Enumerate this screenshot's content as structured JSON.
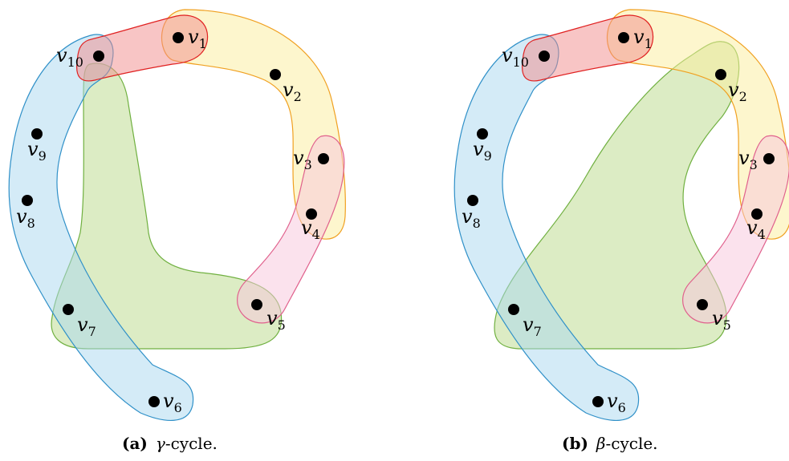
{
  "panels": [
    {
      "id": "a",
      "caption": {
        "tag": "(a)",
        "symbol": "γ",
        "text": "-cycle."
      },
      "vertices": [
        {
          "name": "v",
          "sub": "1"
        },
        {
          "name": "v",
          "sub": "2"
        },
        {
          "name": "v",
          "sub": "3"
        },
        {
          "name": "v",
          "sub": "4"
        },
        {
          "name": "v",
          "sub": "5"
        },
        {
          "name": "v",
          "sub": "6"
        },
        {
          "name": "v",
          "sub": "7"
        },
        {
          "name": "v",
          "sub": "8"
        },
        {
          "name": "v",
          "sub": "9"
        },
        {
          "name": "v",
          "sub": "10"
        }
      ]
    },
    {
      "id": "b",
      "caption": {
        "tag": "(b)",
        "symbol": "β",
        "text": "-cycle."
      },
      "vertices": [
        {
          "name": "v",
          "sub": "1"
        },
        {
          "name": "v",
          "sub": "2"
        },
        {
          "name": "v",
          "sub": "3"
        },
        {
          "name": "v",
          "sub": "4"
        },
        {
          "name": "v",
          "sub": "5"
        },
        {
          "name": "v",
          "sub": "6"
        },
        {
          "name": "v",
          "sub": "7"
        },
        {
          "name": "v",
          "sub": "8"
        },
        {
          "name": "v",
          "sub": "9"
        },
        {
          "name": "v",
          "sub": "10"
        }
      ]
    }
  ],
  "hyperedges": [
    {
      "name": "red",
      "members": [
        "v1",
        "v10"
      ],
      "fill": "#f28b8b",
      "stroke": "#e02020"
    },
    {
      "name": "yellow",
      "members": [
        "v1",
        "v2",
        "v3",
        "v4"
      ],
      "fill": "#fbee9c",
      "stroke": "#f0a020"
    },
    {
      "name": "pink",
      "members": [
        "v3",
        "v4",
        "v5"
      ],
      "fill": "#f7c6dc",
      "stroke": "#e0608c"
    },
    {
      "name": "blue",
      "members": [
        "v10",
        "v9",
        "v8",
        "v7",
        "v6"
      ],
      "fill": "#a9d8f0",
      "stroke": "#2f90c8"
    },
    {
      "name": "green",
      "fill": "#b9d98a",
      "stroke": "#70b040"
    }
  ]
}
